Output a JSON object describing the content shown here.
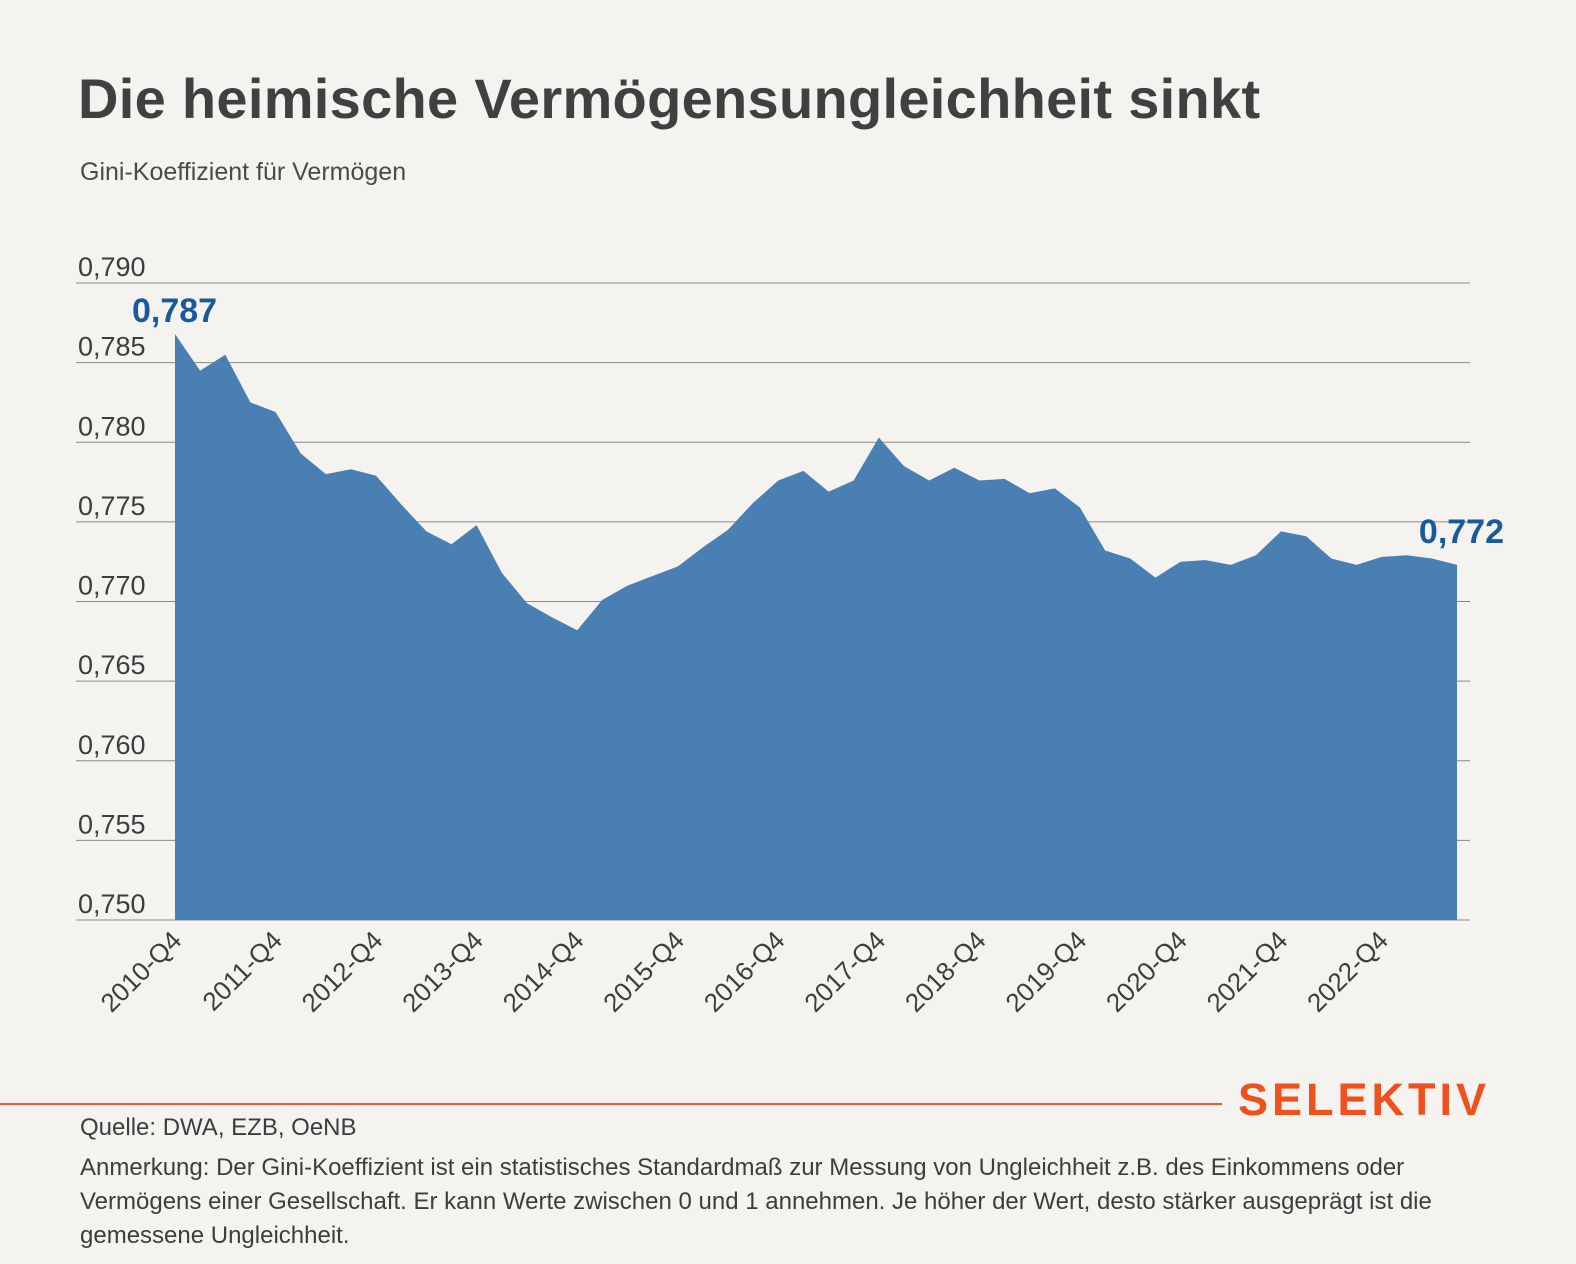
{
  "title": "Die heimische Vermögensungleichheit sinkt",
  "subtitle": "Gini-Koeffizient für Vermögen",
  "brand": "SELEKTIV",
  "source": "Quelle: DWA, EZB, OeNB",
  "note": "Anmerkung: Der Gini-Koeffizient ist ein statistisches Standardmaß zur Messung von Ungleichheit z.B. des Einkommens oder Vermögens einer Gesellschaft. Er kann Werte zwischen 0 und 1 annehmen. Je höher der Wert, desto stärker ausgeprägt ist die gemessene Ungleichheit.",
  "colors": {
    "area": "#4a7fb3",
    "annotation": "#1a5a9c",
    "brand": "#f0501e",
    "grid": "#8a8a8a"
  },
  "chart_data": {
    "type": "area",
    "title": "Die heimische Vermögensungleichheit sinkt",
    "ylabel": "Gini-Koeffizient für Vermögen",
    "xlabel": "",
    "ylim": [
      0.75,
      0.79
    ],
    "yticks": [
      "0,790",
      "0,785",
      "0,780",
      "0,775",
      "0,770",
      "0,765",
      "0,760",
      "0,755",
      "0,750"
    ],
    "ytick_values": [
      0.79,
      0.785,
      0.78,
      0.775,
      0.77,
      0.765,
      0.76,
      0.755,
      0.75
    ],
    "xtick_labels": [
      "2010-Q4",
      "2011-Q4",
      "2012-Q4",
      "2013-Q4",
      "2014-Q4",
      "2015-Q4",
      "2016-Q4",
      "2017-Q4",
      "2018-Q4",
      "2019-Q4",
      "2020-Q4",
      "2021-Q4",
      "2022-Q4"
    ],
    "grid": true,
    "x": [
      "2010-Q4",
      "2011-Q1",
      "2011-Q2",
      "2011-Q3",
      "2011-Q4",
      "2012-Q1",
      "2012-Q2",
      "2012-Q3",
      "2012-Q4",
      "2013-Q1",
      "2013-Q2",
      "2013-Q3",
      "2013-Q4",
      "2014-Q1",
      "2014-Q2",
      "2014-Q3",
      "2014-Q4",
      "2015-Q1",
      "2015-Q2",
      "2015-Q3",
      "2015-Q4",
      "2016-Q1",
      "2016-Q2",
      "2016-Q3",
      "2016-Q4",
      "2017-Q1",
      "2017-Q2",
      "2017-Q3",
      "2017-Q4",
      "2018-Q1",
      "2018-Q2",
      "2018-Q3",
      "2018-Q4",
      "2019-Q1",
      "2019-Q2",
      "2019-Q3",
      "2019-Q4",
      "2020-Q1",
      "2020-Q2",
      "2020-Q3",
      "2020-Q4",
      "2021-Q1",
      "2021-Q2",
      "2021-Q3",
      "2021-Q4",
      "2022-Q1",
      "2022-Q2",
      "2022-Q3",
      "2022-Q4",
      "2023-Q1",
      "2023-Q2",
      "2023-Q3"
    ],
    "values": [
      0.7868,
      0.7845,
      0.7855,
      0.7825,
      0.7819,
      0.7793,
      0.778,
      0.7783,
      0.7779,
      0.7761,
      0.7744,
      0.7736,
      0.7748,
      0.7718,
      0.7699,
      0.769,
      0.7682,
      0.7701,
      0.771,
      0.7716,
      0.7722,
      0.7734,
      0.7745,
      0.7762,
      0.7776,
      0.7782,
      0.7769,
      0.7776,
      0.7803,
      0.7785,
      0.7776,
      0.7784,
      0.7776,
      0.7777,
      0.7768,
      0.7771,
      0.7759,
      0.7732,
      0.7727,
      0.7715,
      0.7725,
      0.7726,
      0.7723,
      0.7729,
      0.7744,
      0.7741,
      0.7727,
      0.7723,
      0.7728,
      0.7729,
      0.7727,
      0.7723
    ],
    "annotations": [
      {
        "label": "0,787",
        "x": "2010-Q4",
        "value": 0.787
      },
      {
        "label": "0,772",
        "x": "2023-Q3",
        "value": 0.772
      }
    ]
  }
}
